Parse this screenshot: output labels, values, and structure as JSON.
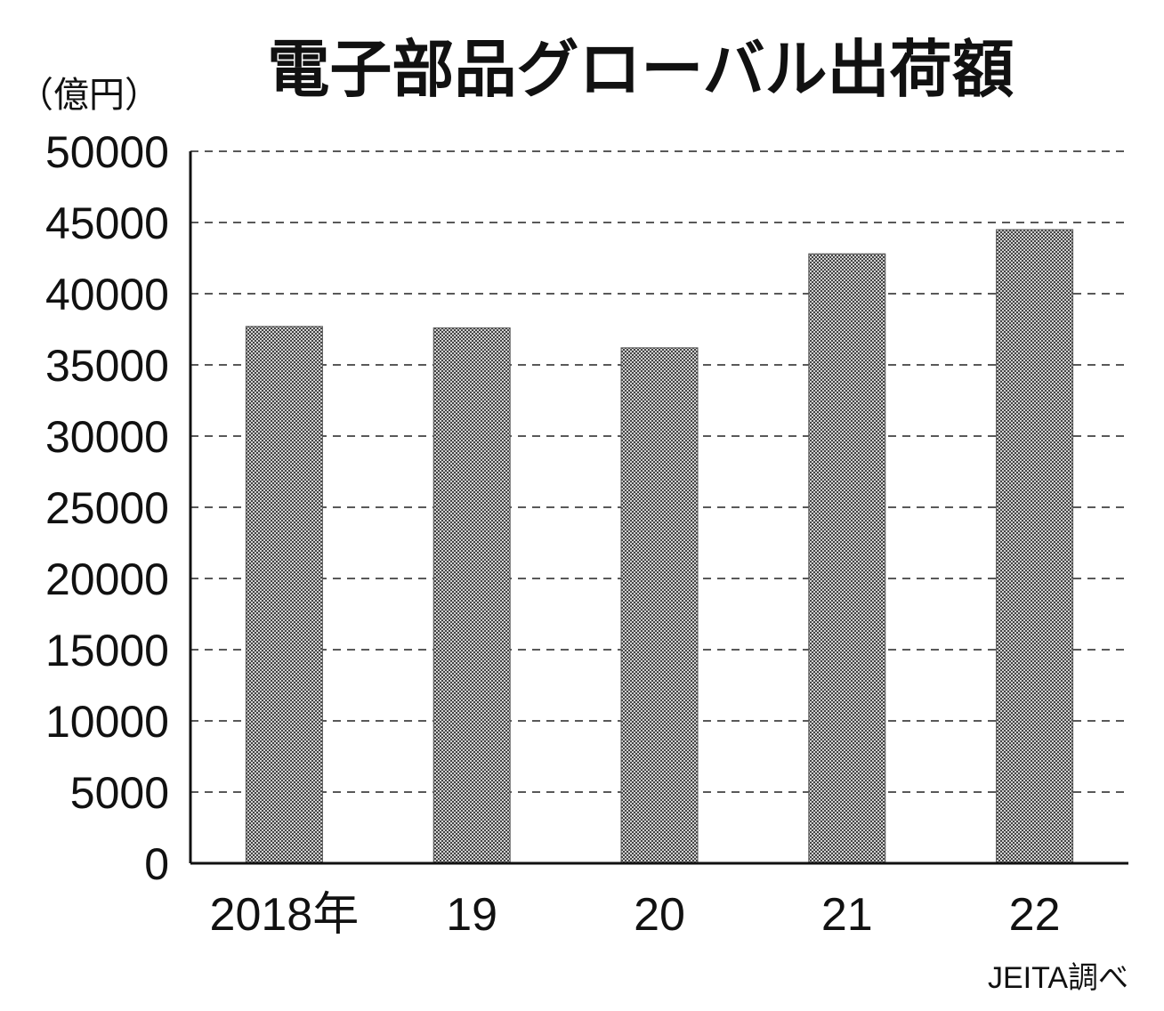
{
  "chart_data": {
    "type": "bar",
    "title": "電子部品グローバル出荷額",
    "ylabel": "（億円）",
    "categories": [
      "2018年",
      "19",
      "20",
      "21",
      "22"
    ],
    "values": [
      37700,
      37600,
      36200,
      42800,
      44500
    ],
    "ylim": [
      0,
      50000
    ],
    "yticks": [
      0,
      5000,
      10000,
      15000,
      20000,
      25000,
      30000,
      35000,
      40000,
      45000,
      50000
    ],
    "grid": true,
    "source": "JEITA調べ"
  },
  "colors": {
    "bar": "#8c8c8c",
    "bar_pattern_dark": "#4a4a4a",
    "bar_pattern_light": "#d6d6d6",
    "text": "#111111"
  }
}
